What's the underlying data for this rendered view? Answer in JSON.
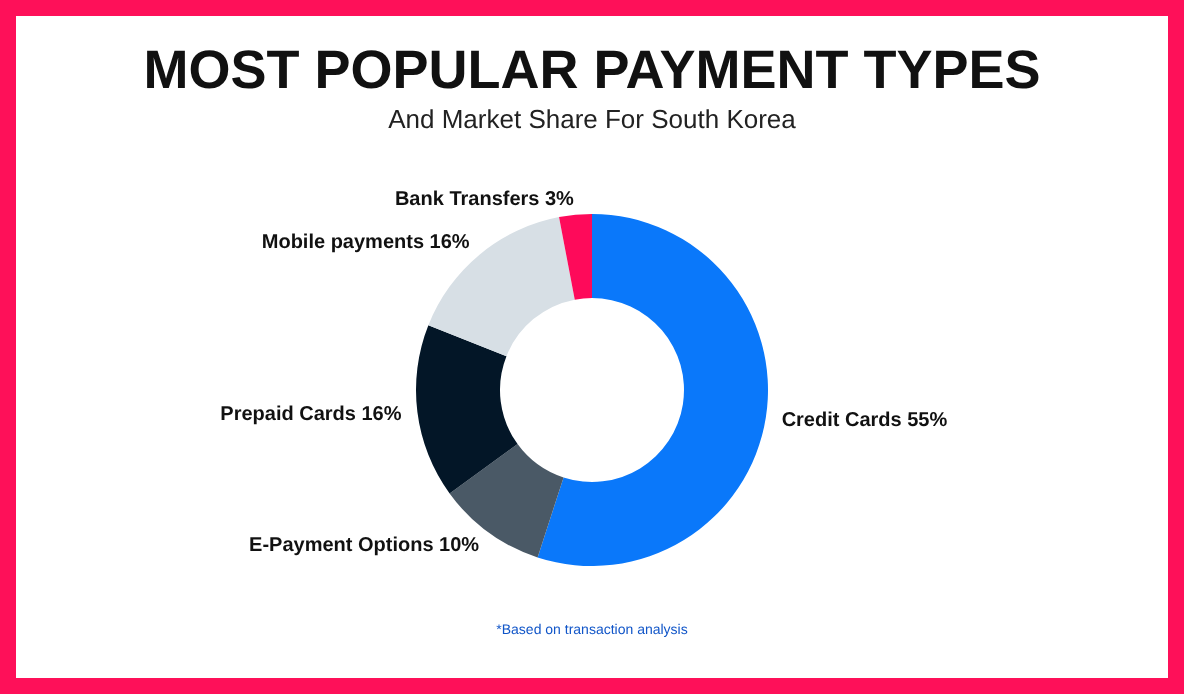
{
  "chart_data": {
    "type": "donut",
    "title": "MOST POPULAR PAYMENT TYPES",
    "subtitle": "And Market Share For South Korea",
    "categories": [
      "Credit Cards",
      "E-Payment Options",
      "Prepaid Cards",
      "Mobile payments",
      "Bank Transfers"
    ],
    "values": [
      55,
      10,
      16,
      16,
      3
    ],
    "value_labels": [
      "55%",
      "10%",
      "16%",
      "16%",
      "3%"
    ],
    "colors": [
      "#0a78fa",
      "#4a5966",
      "#031627",
      "#d7dfe5",
      "#fe0a5a"
    ],
    "annotations": [
      "*Based on transaction analysis"
    ]
  }
}
